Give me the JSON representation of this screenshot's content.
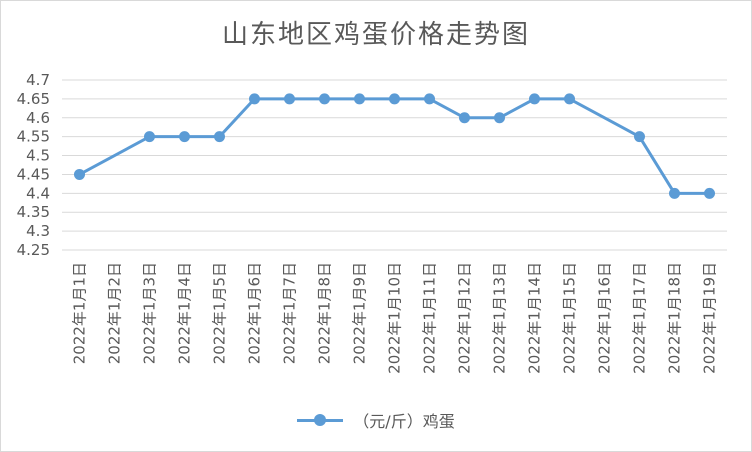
{
  "chart_data": {
    "type": "line",
    "title": "山东地区鸡蛋价格走势图",
    "categories": [
      "2022年1月1日",
      "2022年1月2日",
      "2022年1月3日",
      "2022年1月4日",
      "2022年1月5日",
      "2022年1月6日",
      "2022年1月7日",
      "2022年1月8日",
      "2022年1月9日",
      "2022年1月10日",
      "2022年1月11日",
      "2022年1月12日",
      "2022年1月13日",
      "2022年1月14日",
      "2022年1月15日",
      "2022年1月16日",
      "2022年1月17日",
      "2022年1月18日",
      "2022年1月19日"
    ],
    "series": [
      {
        "name": "（元/斤）鸡蛋",
        "values": [
          4.45,
          null,
          4.55,
          4.55,
          4.55,
          4.65,
          4.65,
          4.65,
          4.65,
          4.65,
          4.65,
          4.6,
          4.6,
          4.65,
          4.65,
          null,
          4.55,
          4.4,
          4.4
        ],
        "color": "#5b9bd5"
      }
    ],
    "yticks": [
      "4.25",
      "4.3",
      "4.35",
      "4.4",
      "4.45",
      "4.5",
      "4.55",
      "4.6",
      "4.65",
      "4.7"
    ],
    "ylim": [
      4.25,
      4.7
    ],
    "grid": true,
    "legend": "bottom",
    "connect_gaps": true
  }
}
